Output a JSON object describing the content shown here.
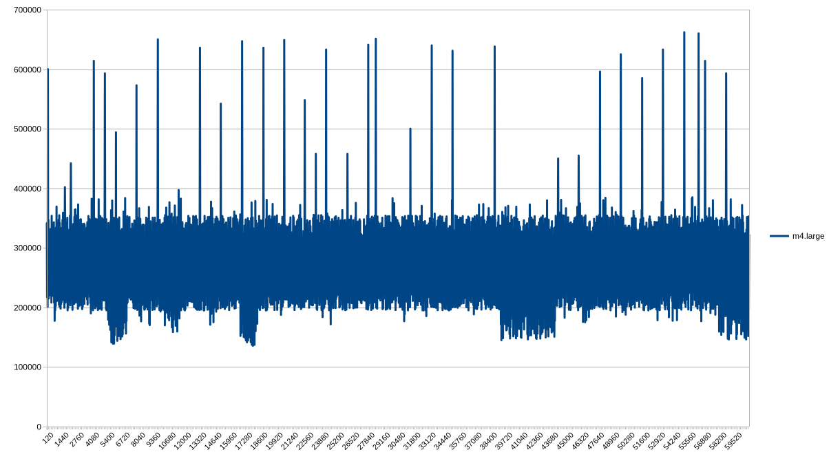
{
  "chart_data": {
    "type": "line",
    "title": "",
    "xlabel": "",
    "ylabel": "",
    "ylim": [
      0,
      700000
    ],
    "yticks": [
      0,
      100000,
      200000,
      300000,
      400000,
      500000,
      600000,
      700000
    ],
    "ytick_labels": [
      "0",
      "100000",
      "200000",
      "300000",
      "400000",
      "500000",
      "600000",
      "700000"
    ],
    "xlim": [
      120,
      60720
    ],
    "x_tick_labels": [
      "120",
      "1440",
      "2760",
      "4080",
      "5400",
      "6720",
      "8040",
      "9360",
      "10680",
      "12000",
      "13320",
      "14640",
      "15960",
      "17280",
      "18600",
      "19920",
      "21240",
      "22560",
      "23880",
      "25200",
      "26520",
      "27840",
      "29160",
      "30480",
      "31800",
      "33120",
      "34440",
      "35760",
      "37080",
      "38400",
      "39720",
      "41040",
      "42360",
      "43680",
      "45000",
      "46320",
      "47640",
      "48960",
      "50280",
      "51600",
      "52920",
      "54240",
      "55560",
      "56880",
      "58200",
      "59520"
    ],
    "x_tick_step": 1320,
    "grid": {
      "horizontal": true,
      "vertical": false
    },
    "legend": {
      "position": "right",
      "entries": [
        "m4.large"
      ]
    },
    "series": [
      {
        "name": "m4.large",
        "color": "#004586",
        "description": "Dense oscillating signal mostly between ~200000 and ~350000 with periodic spikes up to ~660000 and dips down to ~120000",
        "baseline_band": {
          "low": 210000,
          "high": 335000
        },
        "low_dip_regions": [
          {
            "x_from": 5400,
            "x_to": 7000,
            "min": 120000
          },
          {
            "x_from": 10300,
            "x_to": 11600,
            "min": 140000
          },
          {
            "x_from": 16800,
            "x_to": 18300,
            "min": 120000
          },
          {
            "x_from": 39300,
            "x_to": 44000,
            "min": 130000
          },
          {
            "x_from": 58100,
            "x_to": 60720,
            "min": 130000
          }
        ],
        "spikes": [
          {
            "x": 210,
            "y": 600000
          },
          {
            "x": 1680,
            "y": 402000
          },
          {
            "x": 2200,
            "y": 442000
          },
          {
            "x": 4170,
            "y": 614000
          },
          {
            "x": 5130,
            "y": 593000
          },
          {
            "x": 6080,
            "y": 494000
          },
          {
            "x": 7850,
            "y": 573000
          },
          {
            "x": 9700,
            "y": 650000
          },
          {
            "x": 11500,
            "y": 397000
          },
          {
            "x": 13330,
            "y": 636000
          },
          {
            "x": 15120,
            "y": 542000
          },
          {
            "x": 16960,
            "y": 647000
          },
          {
            "x": 18810,
            "y": 636000
          },
          {
            "x": 20600,
            "y": 649000
          },
          {
            "x": 22390,
            "y": 548000
          },
          {
            "x": 23340,
            "y": 458000
          },
          {
            "x": 24230,
            "y": 633000
          },
          {
            "x": 26070,
            "y": 458000
          },
          {
            "x": 27860,
            "y": 641000
          },
          {
            "x": 28520,
            "y": 651000
          },
          {
            "x": 31500,
            "y": 500000
          },
          {
            "x": 33340,
            "y": 640000
          },
          {
            "x": 35130,
            "y": 631000
          },
          {
            "x": 38760,
            "y": 638000
          },
          {
            "x": 44230,
            "y": 450000
          },
          {
            "x": 46020,
            "y": 455000
          },
          {
            "x": 47860,
            "y": 596000
          },
          {
            "x": 49650,
            "y": 625000
          },
          {
            "x": 51490,
            "y": 585000
          },
          {
            "x": 53280,
            "y": 633000
          },
          {
            "x": 55120,
            "y": 662000
          },
          {
            "x": 56370,
            "y": 660000
          },
          {
            "x": 56910,
            "y": 614000
          },
          {
            "x": 58750,
            "y": 593000
          }
        ]
      }
    ]
  },
  "legend": {
    "label": "m4.large"
  }
}
